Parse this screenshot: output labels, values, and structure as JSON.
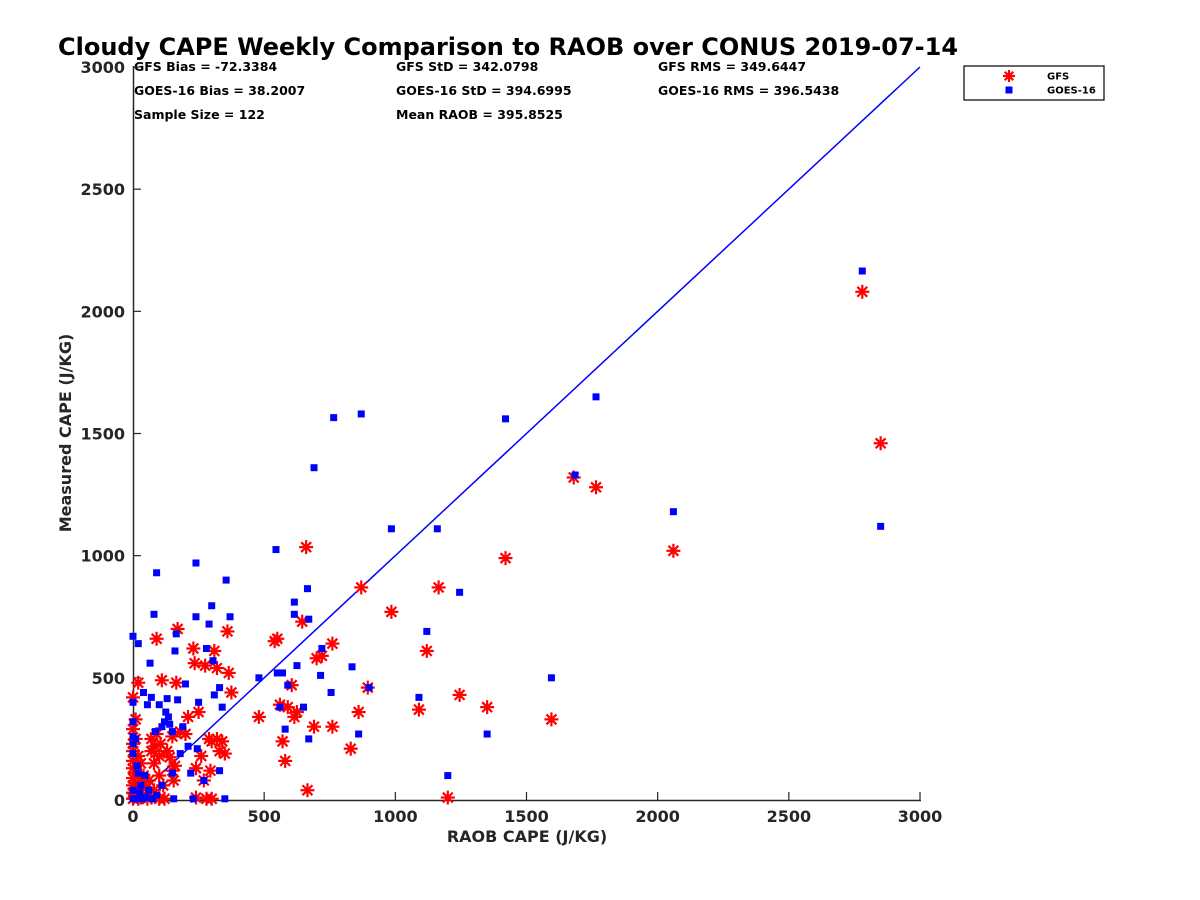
{
  "chart_data": {
    "type": "scatter",
    "title": "Cloudy CAPE Weekly Comparison to RAOB over CONUS 2019-07-14",
    "xlabel": "RAOB CAPE (J/KG)",
    "ylabel": "Measured CAPE (J/KG)",
    "xlim": [
      0,
      3000
    ],
    "ylim": [
      0,
      3000
    ],
    "xticks": [
      "0",
      "500",
      "1000",
      "1500",
      "2000",
      "2500",
      "3000"
    ],
    "yticks": [
      "0",
      "500",
      "1000",
      "1500",
      "2000",
      "2500",
      "3000"
    ],
    "grid": false,
    "legend_position": "top-right",
    "stats": [
      "GFS Bias = -72.3384",
      "GFS StD = 342.0798",
      "GFS RMS = 349.6447",
      "GOES-16 Bias = 38.2007",
      "GOES-16 StD = 394.6995",
      "GOES-16 RMS = 396.5438",
      "Sample Size = 122",
      "Mean RAOB = 395.8525"
    ],
    "reference_line": {
      "x": [
        0,
        3000
      ],
      "y": [
        0,
        3000
      ],
      "color": "#0000ff"
    },
    "series": [
      {
        "name": "GFS",
        "marker": "asterisk",
        "color": "#ff0000",
        "points": [
          [
            0,
            5
          ],
          [
            0,
            30
          ],
          [
            0,
            60
          ],
          [
            0,
            90
          ],
          [
            0,
            130
          ],
          [
            0,
            160
          ],
          [
            0,
            200
          ],
          [
            0,
            230
          ],
          [
            0,
            290
          ],
          [
            0,
            420
          ],
          [
            10,
            20
          ],
          [
            10,
            70
          ],
          [
            10,
            110
          ],
          [
            10,
            250
          ],
          [
            10,
            330
          ],
          [
            20,
            5
          ],
          [
            20,
            45
          ],
          [
            20,
            180
          ],
          [
            20,
            480
          ],
          [
            30,
            10
          ],
          [
            30,
            60
          ],
          [
            30,
            150
          ],
          [
            35,
            90
          ],
          [
            40,
            20
          ],
          [
            40,
            100
          ],
          [
            50,
            50
          ],
          [
            55,
            5
          ],
          [
            60,
            80
          ],
          [
            70,
            10
          ],
          [
            70,
            200
          ],
          [
            70,
            250
          ],
          [
            80,
            40
          ],
          [
            80,
            150
          ],
          [
            85,
            220
          ],
          [
            90,
            270
          ],
          [
            90,
            660
          ],
          [
            100,
            5
          ],
          [
            100,
            100
          ],
          [
            100,
            180
          ],
          [
            105,
            230
          ],
          [
            110,
            490
          ],
          [
            115,
            60
          ],
          [
            120,
            5
          ],
          [
            130,
            200
          ],
          [
            140,
            175
          ],
          [
            150,
            120
          ],
          [
            150,
            260
          ],
          [
            155,
            80
          ],
          [
            160,
            140
          ],
          [
            165,
            480
          ],
          [
            170,
            700
          ],
          [
            180,
            280
          ],
          [
            200,
            270
          ],
          [
            210,
            340
          ],
          [
            230,
            620
          ],
          [
            235,
            560
          ],
          [
            240,
            10
          ],
          [
            240,
            130
          ],
          [
            250,
            360
          ],
          [
            260,
            180
          ],
          [
            270,
            80
          ],
          [
            275,
            550
          ],
          [
            280,
            5
          ],
          [
            290,
            250
          ],
          [
            295,
            120
          ],
          [
            300,
            240
          ],
          [
            300,
            5
          ],
          [
            310,
            610
          ],
          [
            320,
            540
          ],
          [
            320,
            250
          ],
          [
            330,
            200
          ],
          [
            340,
            240
          ],
          [
            350,
            190
          ],
          [
            360,
            690
          ],
          [
            365,
            520
          ],
          [
            375,
            440
          ],
          [
            480,
            340
          ],
          [
            540,
            650
          ],
          [
            550,
            660
          ],
          [
            560,
            390
          ],
          [
            570,
            240
          ],
          [
            580,
            160
          ],
          [
            590,
            380
          ],
          [
            605,
            470
          ],
          [
            615,
            340
          ],
          [
            625,
            360
          ],
          [
            645,
            730
          ],
          [
            660,
            1035
          ],
          [
            665,
            40
          ],
          [
            690,
            300
          ],
          [
            700,
            580
          ],
          [
            720,
            590
          ],
          [
            760,
            300
          ],
          [
            760,
            640
          ],
          [
            830,
            210
          ],
          [
            860,
            360
          ],
          [
            870,
            870
          ],
          [
            895,
            460
          ],
          [
            985,
            770
          ],
          [
            1090,
            370
          ],
          [
            1120,
            610
          ],
          [
            1165,
            870
          ],
          [
            1200,
            10
          ],
          [
            1245,
            430
          ],
          [
            1350,
            380
          ],
          [
            1420,
            990
          ],
          [
            1595,
            330
          ],
          [
            1680,
            1320
          ],
          [
            1765,
            1280
          ],
          [
            2060,
            1020
          ],
          [
            2780,
            2080
          ],
          [
            2850,
            1460
          ]
        ]
      },
      {
        "name": "GOES-16",
        "marker": "square",
        "color": "#0000ff",
        "points": [
          [
            0,
            670
          ],
          [
            0,
            400
          ],
          [
            0,
            320
          ],
          [
            0,
            260
          ],
          [
            0,
            230
          ],
          [
            0,
            190
          ],
          [
            0,
            40
          ],
          [
            0,
            5
          ],
          [
            10,
            250
          ],
          [
            15,
            140
          ],
          [
            15,
            5
          ],
          [
            20,
            640
          ],
          [
            20,
            110
          ],
          [
            25,
            30
          ],
          [
            30,
            60
          ],
          [
            35,
            5
          ],
          [
            40,
            440
          ],
          [
            45,
            100
          ],
          [
            50,
            10
          ],
          [
            55,
            390
          ],
          [
            60,
            40
          ],
          [
            65,
            560
          ],
          [
            70,
            420
          ],
          [
            75,
            5
          ],
          [
            80,
            760
          ],
          [
            85,
            280
          ],
          [
            90,
            930
          ],
          [
            90,
            20
          ],
          [
            100,
            390
          ],
          [
            110,
            300
          ],
          [
            110,
            60
          ],
          [
            120,
            320
          ],
          [
            125,
            360
          ],
          [
            130,
            415
          ],
          [
            135,
            340
          ],
          [
            140,
            310
          ],
          [
            150,
            110
          ],
          [
            150,
            280
          ],
          [
            155,
            5
          ],
          [
            160,
            610
          ],
          [
            165,
            680
          ],
          [
            170,
            410
          ],
          [
            180,
            190
          ],
          [
            190,
            300
          ],
          [
            200,
            475
          ],
          [
            210,
            220
          ],
          [
            220,
            110
          ],
          [
            230,
            5
          ],
          [
            240,
            970
          ],
          [
            240,
            750
          ],
          [
            245,
            210
          ],
          [
            250,
            400
          ],
          [
            270,
            80
          ],
          [
            280,
            620
          ],
          [
            290,
            720
          ],
          [
            300,
            795
          ],
          [
            305,
            570
          ],
          [
            310,
            430
          ],
          [
            330,
            460
          ],
          [
            330,
            120
          ],
          [
            340,
            380
          ],
          [
            350,
            5
          ],
          [
            355,
            900
          ],
          [
            370,
            750
          ],
          [
            480,
            500
          ],
          [
            545,
            1025
          ],
          [
            550,
            520
          ],
          [
            560,
            380
          ],
          [
            570,
            520
          ],
          [
            580,
            290
          ],
          [
            590,
            470
          ],
          [
            615,
            810
          ],
          [
            615,
            760
          ],
          [
            625,
            550
          ],
          [
            650,
            380
          ],
          [
            665,
            865
          ],
          [
            670,
            740
          ],
          [
            670,
            250
          ],
          [
            690,
            1360
          ],
          [
            715,
            510
          ],
          [
            720,
            620
          ],
          [
            755,
            440
          ],
          [
            765,
            1565
          ],
          [
            835,
            545
          ],
          [
            860,
            270
          ],
          [
            870,
            1580
          ],
          [
            900,
            460
          ],
          [
            985,
            1110
          ],
          [
            1090,
            420
          ],
          [
            1120,
            690
          ],
          [
            1160,
            1110
          ],
          [
            1200,
            100
          ],
          [
            1245,
            850
          ],
          [
            1350,
            270
          ],
          [
            1420,
            1560
          ],
          [
            1595,
            500
          ],
          [
            1685,
            1330
          ],
          [
            1765,
            1650
          ],
          [
            2060,
            1180
          ],
          [
            2780,
            2165
          ],
          [
            2850,
            1120
          ]
        ]
      }
    ]
  }
}
